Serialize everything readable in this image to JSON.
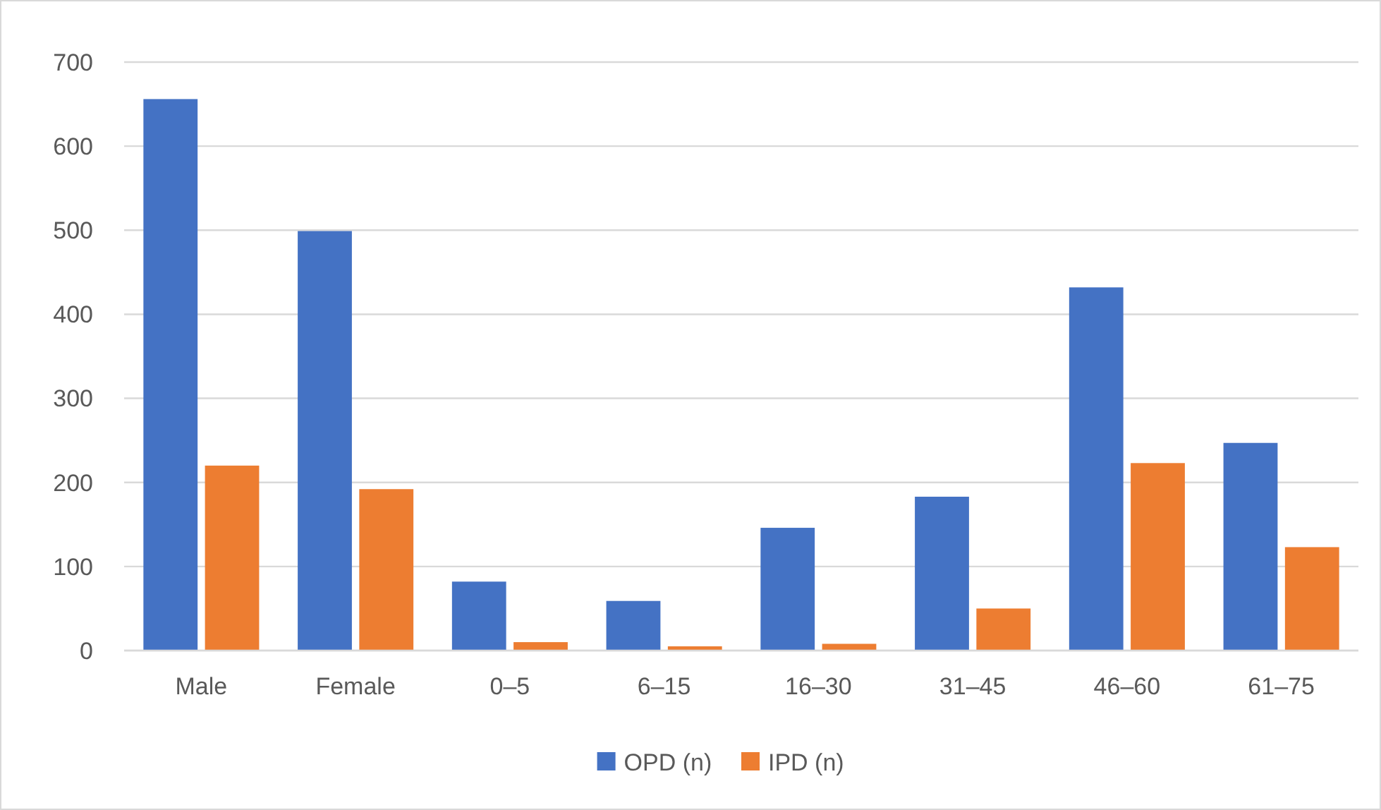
{
  "chart_data": {
    "type": "bar",
    "categories": [
      "Male",
      "Female",
      "0–5",
      "6–15",
      "16–30",
      "31–45",
      "46–60",
      "61–75"
    ],
    "series": [
      {
        "name": "OPD (n)",
        "color": "#4472c4",
        "values": [
          656,
          499,
          82,
          59,
          146,
          183,
          432,
          247
        ]
      },
      {
        "name": "IPD (n)",
        "color": "#ed7d31",
        "values": [
          220,
          192,
          10,
          5,
          8,
          50,
          223,
          123
        ]
      }
    ],
    "ylim": [
      0,
      700
    ],
    "yticks": [
      0,
      100,
      200,
      300,
      400,
      500,
      600,
      700
    ],
    "grid": "y",
    "legend": "bottom"
  }
}
